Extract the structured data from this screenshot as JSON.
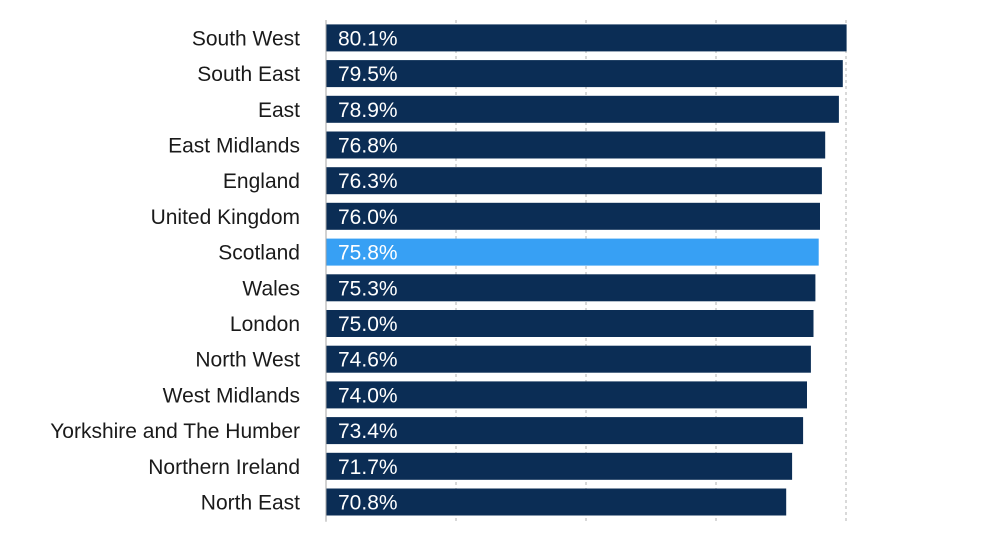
{
  "chart_data": {
    "type": "bar",
    "orientation": "horizontal",
    "title": "",
    "xlabel": "",
    "ylabel": "",
    "categories": [
      "South West",
      "South East",
      "East",
      "East Midlands",
      "England",
      "United Kingdom",
      "Scotland",
      "Wales",
      "London",
      "North West",
      "West Midlands",
      "Yorkshire and The Humber",
      "Northern Ireland",
      "North East"
    ],
    "values": [
      80.1,
      79.5,
      78.9,
      76.8,
      76.3,
      76.0,
      75.8,
      75.3,
      75.0,
      74.6,
      74.0,
      73.4,
      71.7,
      70.8
    ],
    "value_labels": [
      "80.1%",
      "79.5%",
      "78.9%",
      "76.8%",
      "76.3%",
      "76.0%",
      "75.8%",
      "75.3%",
      "75.0%",
      "74.6%",
      "74.0%",
      "73.4%",
      "71.7%",
      "70.8%"
    ],
    "xlim": [
      0,
      90
    ],
    "gridlines": [
      0,
      20,
      40,
      60,
      80
    ],
    "grid": true,
    "grid_style": "dashed",
    "legend": "none",
    "colors": {
      "default": "#0b2d55",
      "highlight": "#37a0f4"
    },
    "highlight_category": "Scotland"
  }
}
